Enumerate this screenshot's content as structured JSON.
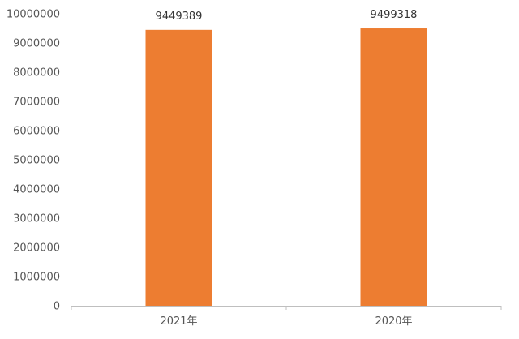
{
  "chart_data": {
    "type": "bar",
    "categories": [
      "2021年",
      "2020年"
    ],
    "values": [
      9449389,
      9499318
    ],
    "data_labels": [
      "9449389",
      "9499318"
    ],
    "ylim": [
      0,
      10000000
    ],
    "yticks": [
      0,
      1000000,
      2000000,
      3000000,
      4000000,
      5000000,
      6000000,
      7000000,
      8000000,
      9000000,
      10000000
    ],
    "ytick_labels": [
      "0",
      "1000000",
      "2000000",
      "3000000",
      "4000000",
      "5000000",
      "6000000",
      "7000000",
      "8000000",
      "9000000",
      "10000000"
    ],
    "bar_color": "#ED7D31",
    "axis_color": "#BFBFBF",
    "grid": false,
    "legend": "none"
  }
}
